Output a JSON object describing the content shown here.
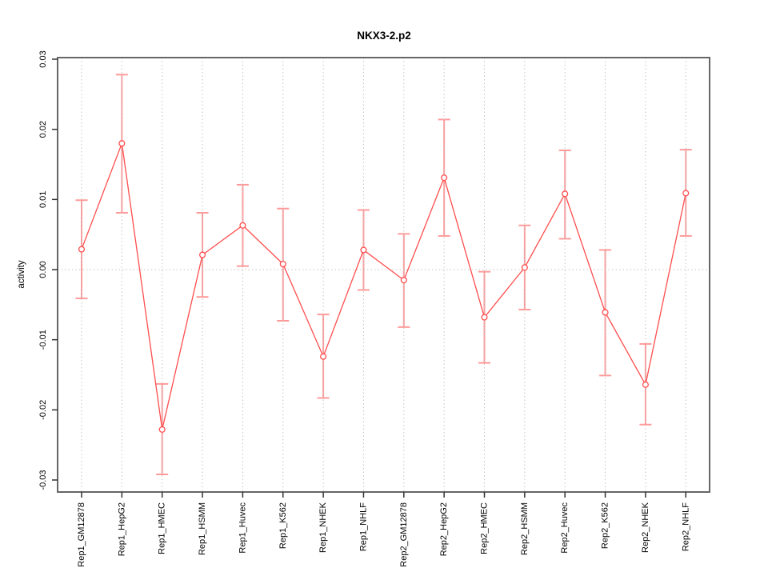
{
  "chart_data": {
    "type": "line",
    "title": "NKX3-2.p2",
    "ylabel": "activity",
    "xlabel": "",
    "ylim": [
      -0.03,
      0.03
    ],
    "yticks": [
      0.03,
      0.02,
      0.01,
      0,
      -0.01,
      -0.02,
      -0.03
    ],
    "ytick_labels": [
      "0.03",
      "0.02",
      "0.01",
      "0.00",
      "-0.01",
      "-0.02",
      "-0.03"
    ],
    "grid": {
      "vertical_dotted_per_category": true,
      "horizontal_dotted_at_zero": true
    },
    "legend_position": "none",
    "marker": "open-circle",
    "series_color": "#ff4d4d",
    "error_bar_color": "#ff9a9a",
    "grid_color": "#c4c4c4",
    "box_color": "#666666",
    "tick_color": "#333333",
    "categories": [
      "Rep1_GM12878",
      "Rep1_HepG2",
      "Rep1_HMEC",
      "Rep1_HSMM",
      "Rep1_Huvec",
      "Rep1_K562",
      "Rep1_NHEK",
      "Rep1_NHLF",
      "Rep2_GM12878",
      "Rep2_HepG2",
      "Rep2_HMEC",
      "Rep2_HSMM",
      "Rep2_Huvec",
      "Rep2_K562",
      "Rep2_NHEK",
      "Rep2_NHLF"
    ],
    "values": [
      0.0029,
      0.018,
      -0.0228,
      0.0021,
      0.0063,
      0.0008,
      -0.0124,
      0.0028,
      -0.0015,
      0.0131,
      -0.0068,
      0.0003,
      0.0108,
      -0.0061,
      -0.0164,
      0.0109
    ],
    "error_low": [
      -0.0041,
      0.0081,
      -0.0292,
      -0.0039,
      0.0005,
      -0.0073,
      -0.0183,
      -0.0029,
      -0.0082,
      0.0048,
      -0.0133,
      -0.0057,
      0.0044,
      -0.0151,
      -0.0221,
      0.0048
    ],
    "error_high": [
      0.0099,
      0.0278,
      -0.0163,
      0.0081,
      0.0121,
      0.0087,
      -0.0064,
      0.0085,
      0.0051,
      0.0214,
      -0.0003,
      0.0063,
      0.017,
      0.0028,
      -0.0106,
      0.0171
    ]
  }
}
